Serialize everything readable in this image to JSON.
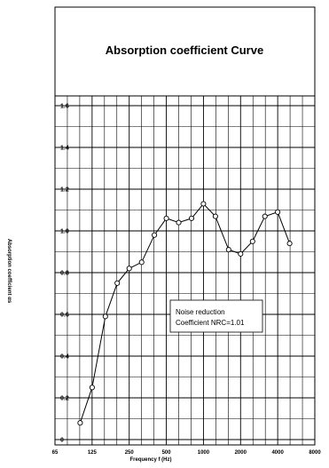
{
  "chart_data": {
    "type": "line",
    "title": "Absorption coefficient Curve",
    "xlabel": "Frequency f (Hz)",
    "ylabel": "Absorption coefficient αs",
    "x_tick_labels": [
      "65",
      "125",
      "250",
      "500",
      "1000",
      "2000",
      "4000",
      "8000"
    ],
    "y_tick_labels": [
      "0",
      "0.2",
      "0.4",
      "0.6",
      "0.8",
      "1.0",
      "1.2",
      "1.4",
      "1.6"
    ],
    "ylim": [
      0,
      1.6
    ],
    "x_scale": "log (1/3 octave)",
    "grid": true,
    "legend": "none",
    "series": [
      {
        "x": [
          100,
          125,
          160,
          200,
          250,
          315,
          400,
          500,
          630,
          800,
          1000,
          1250,
          1600,
          2000,
          2500,
          3150,
          4000,
          5000
        ],
        "values": [
          0.08,
          0.25,
          0.59,
          0.75,
          0.82,
          0.85,
          0.98,
          1.06,
          1.04,
          1.06,
          1.13,
          1.07,
          0.91,
          0.89,
          0.95,
          1.07,
          1.09,
          0.94
        ]
      }
    ],
    "annotation": {
      "line1": "Noise reduction",
      "line2": "Coefficient NRC=1.01"
    }
  }
}
